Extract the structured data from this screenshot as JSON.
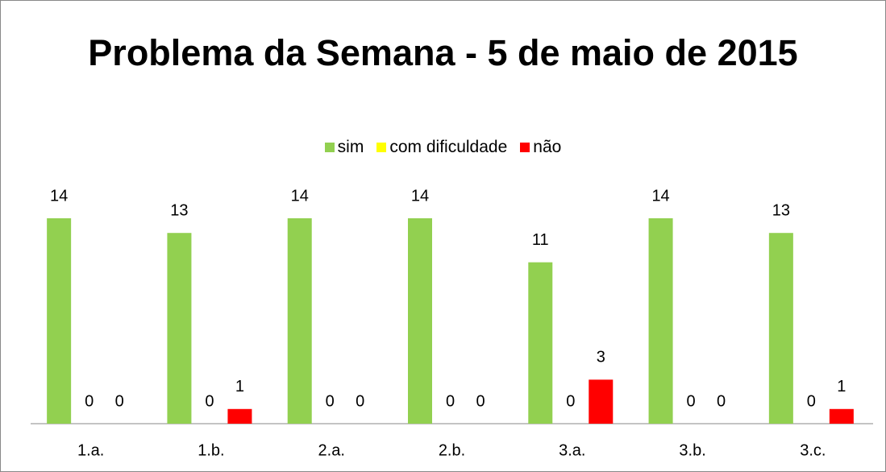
{
  "chart_data": {
    "type": "bar",
    "title": "Problema da Semana - 5 de maio de 2015",
    "categories": [
      "1.a.",
      "1.b.",
      "2.a.",
      "2.b.",
      "3.a.",
      "3.b.",
      "3.c."
    ],
    "series": [
      {
        "name": "sim",
        "color": "#92d050",
        "values": [
          14,
          13,
          14,
          14,
          11,
          14,
          13
        ]
      },
      {
        "name": "com dificuldade",
        "color": "#ffff00",
        "values": [
          0,
          0,
          0,
          0,
          0,
          0,
          0
        ]
      },
      {
        "name": "não",
        "color": "#ff0000",
        "values": [
          0,
          1,
          0,
          0,
          3,
          0,
          1
        ]
      }
    ],
    "legend": "top"
  }
}
